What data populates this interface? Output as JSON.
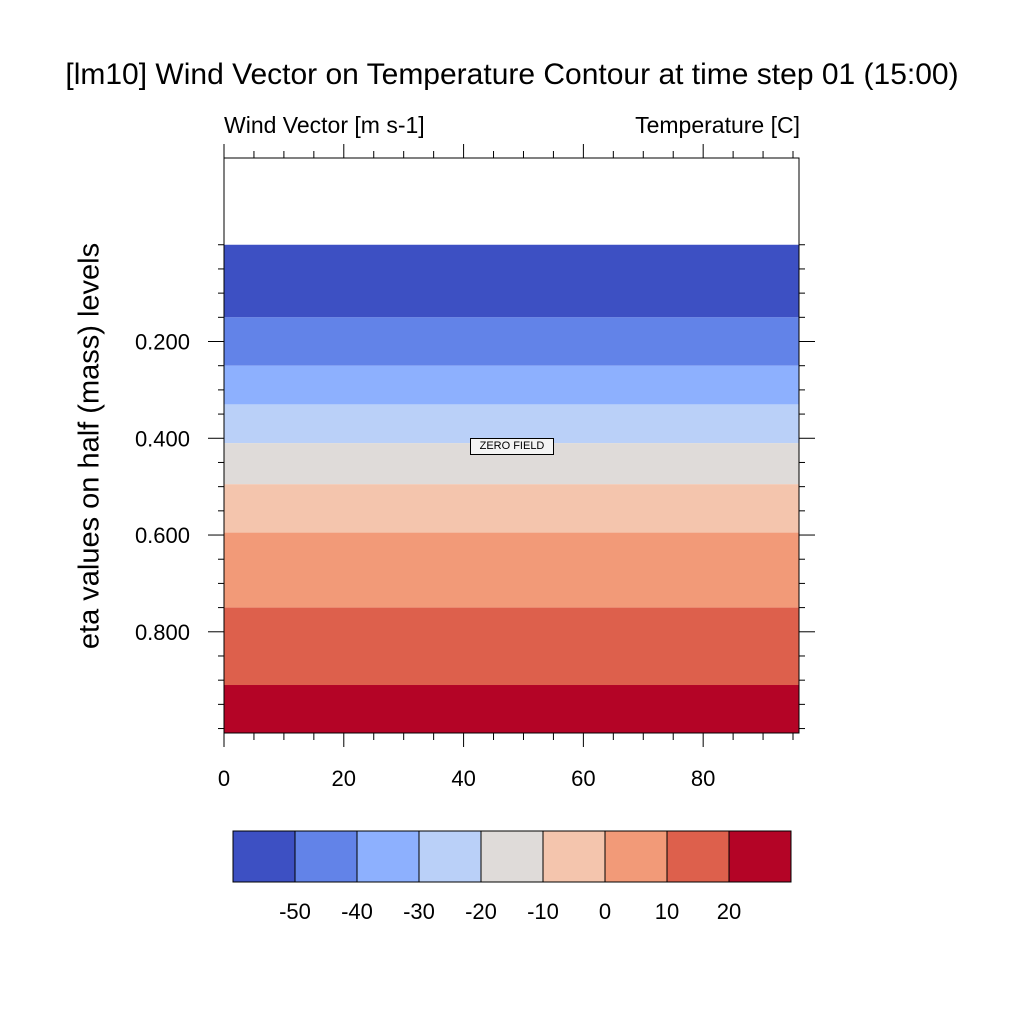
{
  "chart_data": {
    "type": "heatmap",
    "title": "[lm10] Wind Vector on Temperature Contour at time step 01 (15:00)",
    "subtitle_left": "Wind Vector [m s-1]",
    "subtitle_right": "Temperature [C]",
    "ylabel": "eta values on half (mass) levels",
    "xlabel": "",
    "xlim": [
      0,
      96
    ],
    "x_ticks": [
      "0",
      "20",
      "40",
      "60",
      "80"
    ],
    "y_ticks": [
      "0.200",
      "0.400",
      "0.600",
      "0.800"
    ],
    "y_reversed": true,
    "annotation": "ZERO FIELD",
    "bands": [
      {
        "color": "#3d50c3",
        "eta_top": 0.0,
        "eta_bottom": 0.15
      },
      {
        "color": "#6283e8",
        "eta_top": 0.15,
        "eta_bottom": 0.25
      },
      {
        "color": "#8db0fe",
        "eta_top": 0.25,
        "eta_bottom": 0.33
      },
      {
        "color": "#bad0f8",
        "eta_top": 0.33,
        "eta_bottom": 0.41
      },
      {
        "color": "#dfdbd9",
        "eta_top": 0.41,
        "eta_bottom": 0.495
      },
      {
        "color": "#f4c5ad",
        "eta_top": 0.495,
        "eta_bottom": 0.595
      },
      {
        "color": "#f29a78",
        "eta_top": 0.595,
        "eta_bottom": 0.75
      },
      {
        "color": "#dd604c",
        "eta_top": 0.75,
        "eta_bottom": 0.91
      },
      {
        "color": "#b40426",
        "eta_top": 0.91,
        "eta_bottom": 1.2
      }
    ],
    "colorbar": {
      "colors": [
        "#3d50c3",
        "#6283e8",
        "#8db0fe",
        "#bad0f8",
        "#dfdbd9",
        "#f4c5ad",
        "#f29a78",
        "#dd604c",
        "#b40426"
      ],
      "labels": [
        "-50",
        "-40",
        "-30",
        "-20",
        "-10",
        "0",
        "10",
        "20"
      ]
    }
  }
}
